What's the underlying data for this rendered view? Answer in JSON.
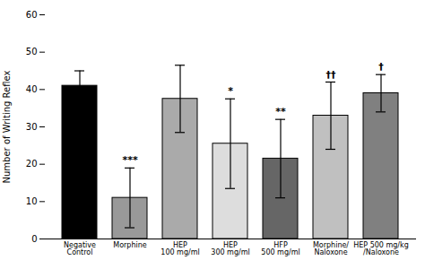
{
  "chart_data": {
    "type": "bar",
    "categories": [
      "Negative\nControl",
      "Morphine",
      "HEP\n100 mg/ml",
      "HEP\n300 mg/ml",
      "HFP\n500 mg/ml",
      "Morphine/\nNaloxone",
      "HEP 500 mg/kg\n/Naloxone"
    ],
    "values": [
      41.0,
      11.0,
      37.5,
      25.5,
      21.5,
      33.0,
      39.0
    ],
    "errors": [
      4.0,
      8.0,
      9.0,
      12.0,
      10.5,
      9.0,
      5.0
    ],
    "colors": [
      "#000000",
      "#999999",
      "#aaaaaa",
      "#dddddd",
      "#666666",
      "#c0c0c0",
      "#808080"
    ],
    "annotations": [
      null,
      "***",
      null,
      "*",
      "**",
      "††",
      "†"
    ],
    "ylabel": "Number of Writing Reflex",
    "ylim": [
      0,
      60
    ],
    "yticks": [
      0,
      10,
      20,
      30,
      40,
      50,
      60
    ]
  }
}
